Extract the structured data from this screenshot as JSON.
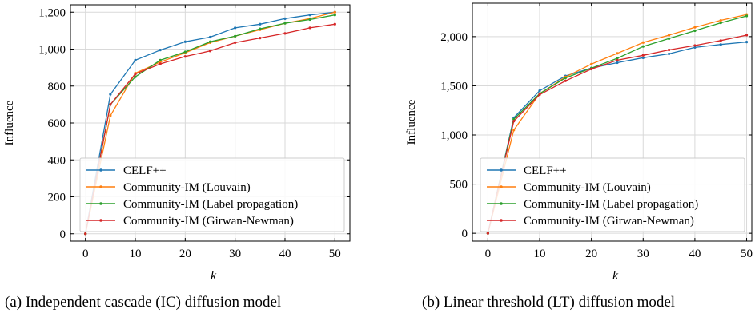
{
  "captions": {
    "a": "(a) Independent cascade (IC) diffusion model",
    "b": "(b) Linear threshold (LT) diffusion model"
  },
  "colors": {
    "CELF++": "#1f77b4",
    "Community-IM (Louvain)": "#ff7f0e",
    "Community-IM (Label propagation)": "#2ca02c",
    "Community-IM (Girwan-Newman)": "#d62728"
  },
  "chart_data": [
    {
      "type": "line",
      "title": "",
      "xlabel": "k",
      "ylabel": "Influence",
      "xlim": [
        -3,
        53
      ],
      "ylim": [
        -40,
        1240
      ],
      "xticks": [
        0,
        10,
        20,
        30,
        40,
        50
      ],
      "xtick_labels": [
        "0",
        "10",
        "20",
        "30",
        "40",
        "50"
      ],
      "yticks": [
        0,
        200,
        400,
        600,
        800,
        1000,
        1200
      ],
      "ytick_labels": [
        "0",
        "200",
        "400",
        "600",
        "800",
        "1,000",
        "1,200"
      ],
      "grid": true,
      "legend": "bottom-left",
      "x": [
        0,
        5,
        10,
        15,
        20,
        25,
        30,
        35,
        40,
        45,
        50
      ],
      "series": [
        {
          "name": "CELF++",
          "values": [
            0,
            755,
            940,
            995,
            1040,
            1065,
            1115,
            1135,
            1165,
            1185,
            1200
          ]
        },
        {
          "name": "Community-IM (Louvain)",
          "values": [
            0,
            640,
            870,
            930,
            980,
            1035,
            1070,
            1105,
            1140,
            1165,
            1200
          ]
        },
        {
          "name": "Community-IM (Label propagation)",
          "values": [
            0,
            700,
            850,
            940,
            985,
            1040,
            1070,
            1110,
            1140,
            1160,
            1185
          ]
        },
        {
          "name": "Community-IM (Girwan-Newman)",
          "values": [
            0,
            700,
            865,
            920,
            960,
            990,
            1035,
            1060,
            1085,
            1115,
            1135
          ]
        }
      ]
    },
    {
      "type": "line",
      "title": "",
      "xlabel": "k",
      "ylabel": "Influence",
      "xlim": [
        -3,
        51
      ],
      "ylim": [
        -80,
        2340
      ],
      "xticks": [
        0,
        10,
        20,
        30,
        40,
        50
      ],
      "xtick_labels": [
        "0",
        "10",
        "20",
        "30",
        "40",
        "50"
      ],
      "yticks": [
        0,
        500,
        1000,
        1500,
        2000
      ],
      "ytick_labels": [
        "0",
        "500",
        "1,000",
        "1,500",
        "2,000"
      ],
      "grid": true,
      "legend": "bottom-left",
      "x": [
        0,
        5,
        10,
        15,
        20,
        25,
        30,
        35,
        40,
        45,
        50
      ],
      "series": [
        {
          "name": "CELF++",
          "values": [
            0,
            1175,
            1450,
            1600,
            1680,
            1735,
            1785,
            1825,
            1890,
            1920,
            1945
          ]
        },
        {
          "name": "Community-IM (Louvain)",
          "values": [
            0,
            1050,
            1420,
            1590,
            1720,
            1830,
            1940,
            2015,
            2095,
            2165,
            2225
          ]
        },
        {
          "name": "Community-IM (Label propagation)",
          "values": [
            0,
            1160,
            1420,
            1580,
            1680,
            1780,
            1900,
            1980,
            2060,
            2140,
            2210
          ]
        },
        {
          "name": "Community-IM (Girwan-Newman)",
          "values": [
            0,
            1140,
            1410,
            1550,
            1670,
            1760,
            1810,
            1865,
            1910,
            1960,
            2015
          ]
        }
      ]
    }
  ]
}
